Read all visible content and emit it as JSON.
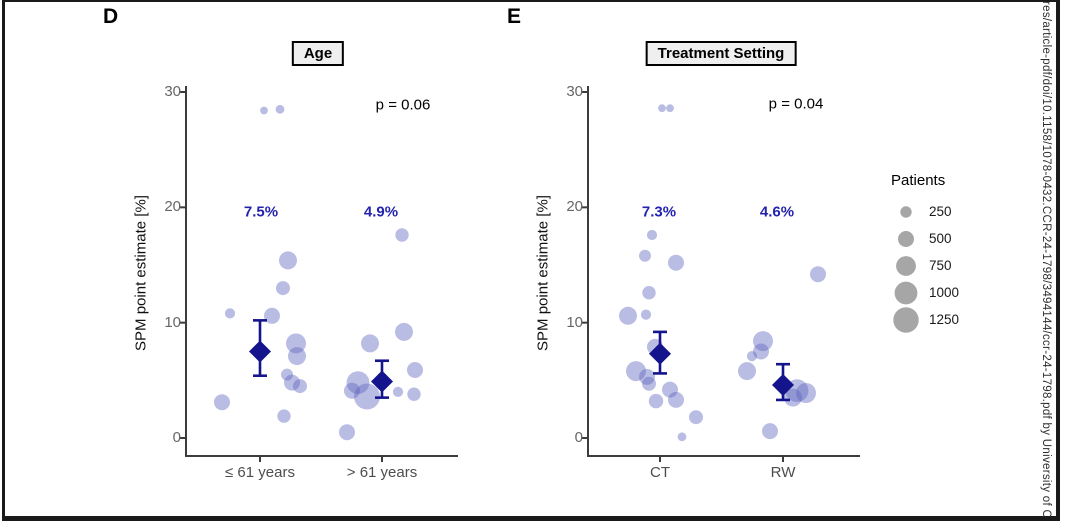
{
  "figure": {
    "watermark_text": "res/article-pdf/doi/10.1158/1078-0432.CCR-24-1798/3494144/ccr-24-1798.pdf by University of C",
    "colors": {
      "bubble": "#5a62bd",
      "bubble_opacity": 0.42,
      "diamond": "#14148c",
      "pct_label": "#2323ae",
      "axis": "#3c3c3c",
      "legend_circle": "#a6a6a6",
      "title_box_bg": "#efefef",
      "frame_border": "#1a1a1a"
    }
  },
  "legend": {
    "title": "Patients",
    "sizes": [
      250,
      500,
      750,
      1000,
      1250
    ]
  },
  "chart_data": [
    {
      "type": "scatter",
      "panel_label": "D",
      "title": "Age",
      "p_value": "p = 0.06",
      "ylabel": "SPM point estimate [%]",
      "ylim": [
        0,
        30
      ],
      "yticks": [
        30,
        20,
        10,
        0
      ],
      "grid": false,
      "legend_position": "right-of-figure",
      "groups": [
        {
          "label": "≤ 61 years",
          "mean": 7.5,
          "mean_label": "7.5%",
          "ci_low": 5.4,
          "ci_high": 10.2,
          "points": [
            {
              "y": 28.4,
              "n": 120,
              "dx": 4
            },
            {
              "y": 28.5,
              "n": 150,
              "dx": 20
            },
            {
              "y": 15.4,
              "n": 620,
              "dx": 28
            },
            {
              "y": 13.0,
              "n": 380,
              "dx": 23
            },
            {
              "y": 10.8,
              "n": 200,
              "dx": -30
            },
            {
              "y": 10.6,
              "n": 500,
              "dx": 12
            },
            {
              "y": 8.2,
              "n": 770,
              "dx": 36
            },
            {
              "y": 7.1,
              "n": 620,
              "dx": 37
            },
            {
              "y": 5.5,
              "n": 280,
              "dx": 27
            },
            {
              "y": 4.8,
              "n": 500,
              "dx": 32
            },
            {
              "y": 4.5,
              "n": 380,
              "dx": 40
            },
            {
              "y": 3.1,
              "n": 500,
              "dx": -38
            },
            {
              "y": 1.9,
              "n": 350,
              "dx": 24
            }
          ]
        },
        {
          "label": "> 61 years",
          "mean": 4.9,
          "mean_label": "4.9%",
          "ci_low": 3.5,
          "ci_high": 6.7,
          "points": [
            {
              "y": 17.6,
              "n": 350,
              "dx": 20
            },
            {
              "y": 9.2,
              "n": 620,
              "dx": 22
            },
            {
              "y": 8.2,
              "n": 620,
              "dx": -12
            },
            {
              "y": 5.9,
              "n": 500,
              "dx": 33
            },
            {
              "y": 4.8,
              "n": 1000,
              "dx": -24
            },
            {
              "y": 4.1,
              "n": 500,
              "dx": -30
            },
            {
              "y": 4.0,
              "n": 200,
              "dx": 16
            },
            {
              "y": 3.8,
              "n": 350,
              "dx": 32
            },
            {
              "y": 3.6,
              "n": 1300,
              "dx": -15
            },
            {
              "y": 0.5,
              "n": 500,
              "dx": -35
            }
          ]
        }
      ]
    },
    {
      "type": "scatter",
      "panel_label": "E",
      "title": "Treatment Setting",
      "p_value": "p = 0.04",
      "ylabel": "SPM point estimate [%]",
      "ylim": [
        0,
        30
      ],
      "yticks": [
        30,
        20,
        10,
        0
      ],
      "grid": false,
      "legend_position": "right-of-figure",
      "groups": [
        {
          "label": "CT",
          "mean": 7.3,
          "mean_label": "7.3%",
          "ci_low": 5.6,
          "ci_high": 9.2,
          "points": [
            {
              "y": 28.6,
              "n": 120,
              "dx": 2
            },
            {
              "y": 28.6,
              "n": 120,
              "dx": 10
            },
            {
              "y": 17.6,
              "n": 200,
              "dx": -8
            },
            {
              "y": 15.8,
              "n": 280,
              "dx": -15
            },
            {
              "y": 15.2,
              "n": 500,
              "dx": 16
            },
            {
              "y": 12.6,
              "n": 350,
              "dx": -11
            },
            {
              "y": 10.6,
              "n": 620,
              "dx": -32
            },
            {
              "y": 10.7,
              "n": 200,
              "dx": -14
            },
            {
              "y": 7.9,
              "n": 500,
              "dx": -5
            },
            {
              "y": 5.8,
              "n": 770,
              "dx": -24
            },
            {
              "y": 5.3,
              "n": 500,
              "dx": -13
            },
            {
              "y": 4.7,
              "n": 380,
              "dx": -11
            },
            {
              "y": 4.2,
              "n": 500,
              "dx": 10
            },
            {
              "y": 3.2,
              "n": 400,
              "dx": -4
            },
            {
              "y": 3.3,
              "n": 500,
              "dx": 16
            },
            {
              "y": 1.8,
              "n": 380,
              "dx": 36
            },
            {
              "y": 0.1,
              "n": 150,
              "dx": 22
            }
          ]
        },
        {
          "label": "RW",
          "mean": 4.6,
          "mean_label": "4.6%",
          "ci_low": 3.3,
          "ci_high": 6.4,
          "points": [
            {
              "y": 14.2,
              "n": 500,
              "dx": 35
            },
            {
              "y": 8.4,
              "n": 770,
              "dx": -20
            },
            {
              "y": 7.5,
              "n": 500,
              "dx": -22
            },
            {
              "y": 7.1,
              "n": 200,
              "dx": -31
            },
            {
              "y": 5.8,
              "n": 620,
              "dx": -36
            },
            {
              "y": 4.1,
              "n": 1000,
              "dx": 14
            },
            {
              "y": 3.9,
              "n": 770,
              "dx": 23
            },
            {
              "y": 3.5,
              "n": 620,
              "dx": 10
            },
            {
              "y": 0.6,
              "n": 500,
              "dx": -13
            }
          ]
        }
      ]
    }
  ]
}
